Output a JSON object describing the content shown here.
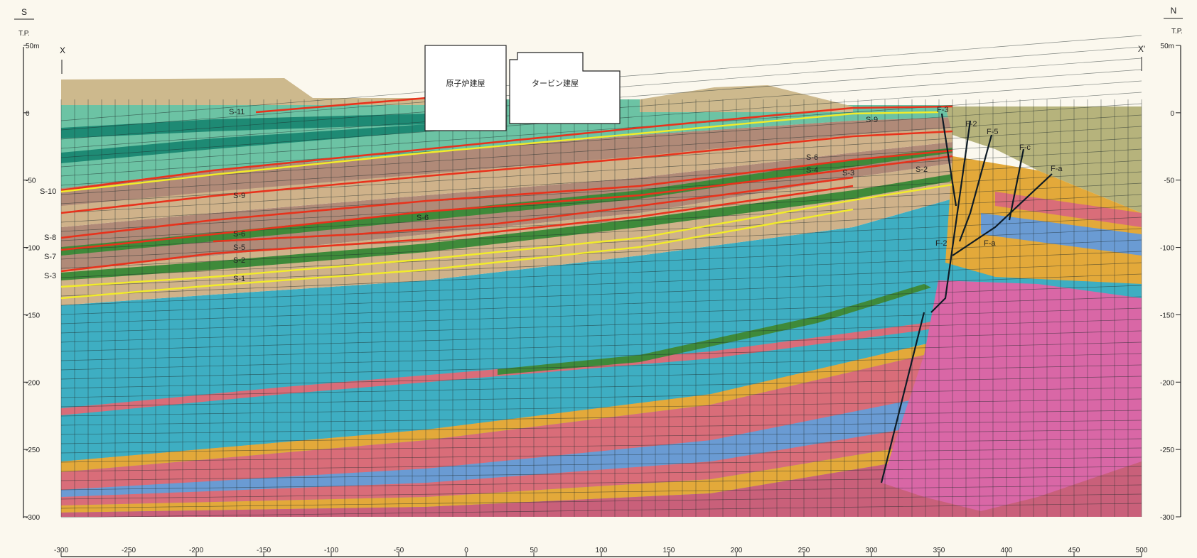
{
  "orientation": {
    "left_label": "S",
    "right_label": "N"
  },
  "datum": {
    "left": "T.P.",
    "right": "T.P."
  },
  "section_ends": {
    "left": "X",
    "right": "X'"
  },
  "buildings": {
    "reactor": "原子炉建屋",
    "turbine": "タービン建屋"
  },
  "elevation_axis": {
    "ticks": [
      {
        "value": 50,
        "label_left": "50m",
        "label_right": "50m"
      },
      {
        "value": 0,
        "label_left": "0",
        "label_right": "0"
      },
      {
        "value": -50,
        "label_left": "-50",
        "label_right": "-50"
      },
      {
        "value": -100,
        "label_left": "-100",
        "label_right": "-100"
      },
      {
        "value": -150,
        "label_left": "-150",
        "label_right": "-150"
      },
      {
        "value": -200,
        "label_left": "-200",
        "label_right": "-200"
      },
      {
        "value": -250,
        "label_left": "-250",
        "label_right": "-250"
      },
      {
        "value": -300,
        "label_left": "-300",
        "label_right": "-300"
      }
    ],
    "range": [
      -300,
      50
    ]
  },
  "distance_axis": {
    "ticks": [
      "-300",
      "-250",
      "-200",
      "-150",
      "-100",
      "-50",
      "0",
      "50",
      "100",
      "150",
      "200",
      "250",
      "300",
      "350",
      "400",
      "450",
      "500"
    ],
    "range": [
      -300,
      500
    ]
  },
  "seam_labels_left": [
    "S-11",
    "S-10",
    "S-9",
    "S-8",
    "S-7",
    "S-6",
    "S-5",
    "S-3",
    "S-2",
    "S-1"
  ],
  "seam_labels_inner": [
    "S-9",
    "S-6",
    "S-5",
    "S-4",
    "S-3",
    "S-2",
    "S-6",
    "S-9",
    "S-10"
  ],
  "fault_labels": [
    "F-3",
    "F-2",
    "F-5",
    "F-c",
    "F-a",
    "F-2",
    "F-a"
  ],
  "colors": {
    "background": "#fbf8ee",
    "teal_light": "#6cc3a4",
    "teal_dark": "#1e8a74",
    "brown": "#b08a78",
    "tan": "#cfb28a",
    "green_dark": "#3f8a3a",
    "cyan": "#3eaec2",
    "pink": "#d967a6",
    "salmon": "#d96d79",
    "orange": "#e3a93a",
    "blue": "#6a9bd3",
    "olive": "#b6b37c",
    "seam_red": "#e8321c",
    "seam_yellow": "#f2ec2a"
  }
}
